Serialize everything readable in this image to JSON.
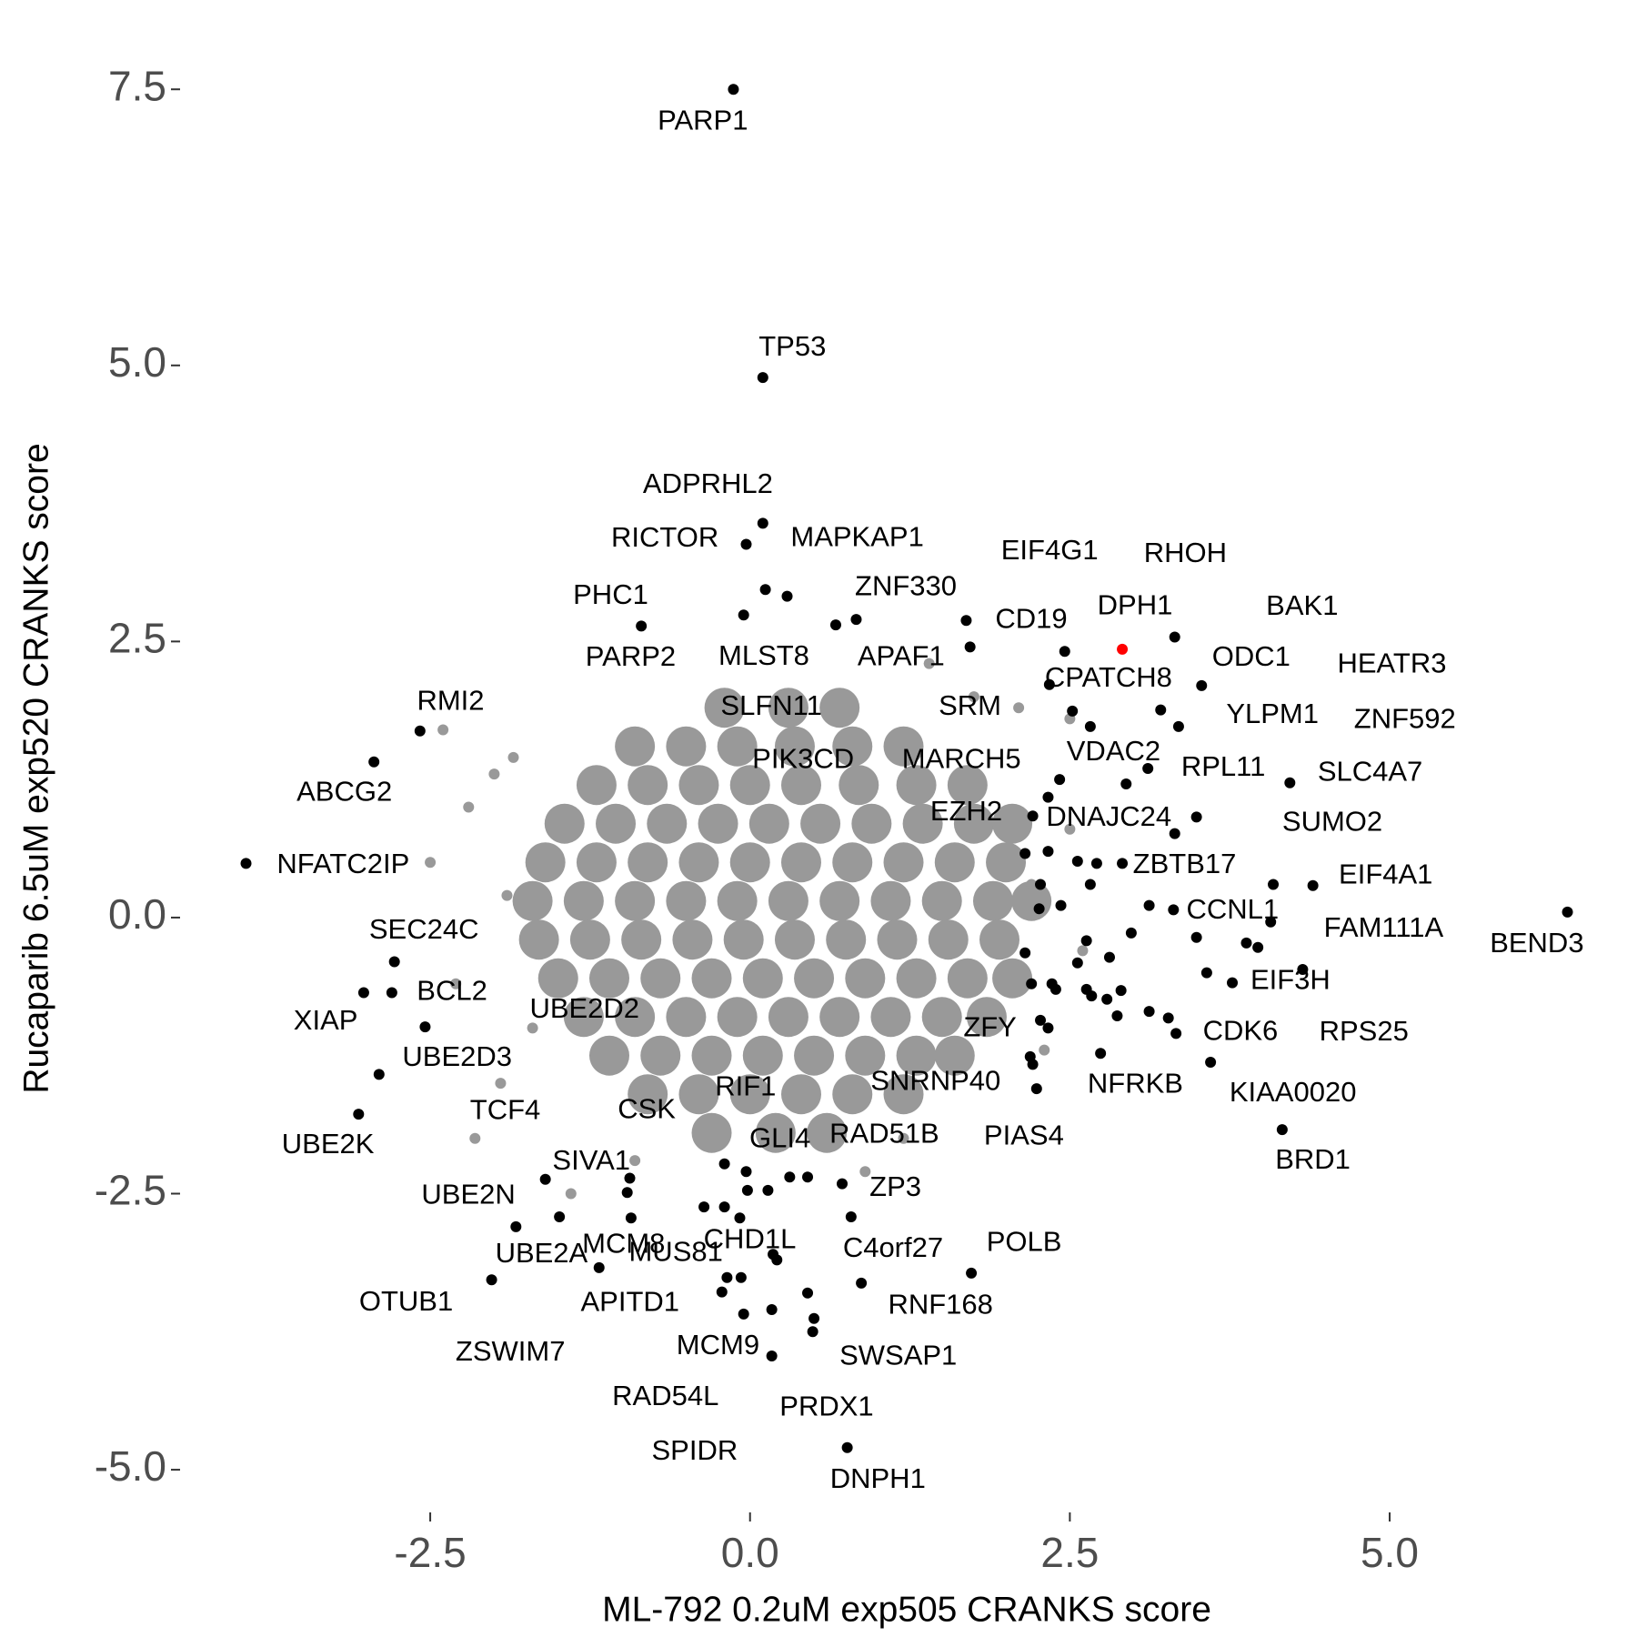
{
  "chart_data": {
    "type": "scatter",
    "xlabel": "ML-792 0.2uM exp505 CRANKS score",
    "ylabel": "Rucaparib 6.5uM exp520 CRANKS score",
    "xlim": [
      -4.42,
      6.77
    ],
    "ylim": [
      -5.37,
      7.93
    ],
    "xticks": [
      -2.5,
      {
        "value": 0,
        "label": "0.0"
      },
      2.5,
      {
        "value": 5,
        "label": "5.0"
      }
    ],
    "yticks": [
      {
        "value": -5,
        "label": "-5.0"
      },
      -2.5,
      {
        "value": 0,
        "label": "0.0"
      },
      2.5,
      {
        "value": 5,
        "label": "5.0"
      },
      7.5
    ],
    "grid": false,
    "series": [
      {
        "color": "#999999",
        "marker_size": 22,
        "x": [
          -0.2,
          0.3,
          0.7,
          -0.9,
          -0.5,
          -0.1,
          0.35,
          0.8,
          1.2,
          -1.2,
          -0.8,
          -0.4,
          0.0,
          0.4,
          0.85,
          1.3,
          1.7,
          -1.45,
          -1.05,
          -0.65,
          -0.25,
          0.15,
          0.55,
          0.95,
          1.35,
          1.75,
          2.05,
          -1.6,
          -1.2,
          -0.8,
          -0.4,
          0.0,
          0.4,
          0.8,
          1.2,
          1.6,
          2.0,
          -1.7,
          -1.3,
          -0.9,
          -0.5,
          -0.1,
          0.3,
          0.7,
          1.1,
          1.5,
          1.9,
          2.2,
          -1.65,
          -1.25,
          -0.85,
          -0.45,
          -0.05,
          0.35,
          0.75,
          1.15,
          1.55,
          1.95,
          -1.5,
          -1.1,
          -0.7,
          -0.3,
          0.1,
          0.5,
          0.9,
          1.3,
          1.7,
          2.05,
          -1.3,
          -0.9,
          -0.5,
          -0.1,
          0.3,
          0.7,
          1.1,
          1.5,
          1.85,
          -1.1,
          -0.7,
          -0.3,
          0.1,
          0.5,
          0.9,
          1.3,
          1.6,
          -0.8,
          -0.4,
          0.0,
          0.4,
          0.8,
          1.2,
          -0.3,
          0.2,
          0.6
        ],
        "y": [
          1.9,
          1.9,
          1.9,
          1.55,
          1.55,
          1.55,
          1.55,
          1.55,
          1.55,
          1.2,
          1.2,
          1.2,
          1.2,
          1.2,
          1.2,
          1.2,
          1.2,
          0.85,
          0.85,
          0.85,
          0.85,
          0.85,
          0.85,
          0.85,
          0.85,
          0.85,
          0.85,
          0.5,
          0.5,
          0.5,
          0.5,
          0.5,
          0.5,
          0.5,
          0.5,
          0.5,
          0.5,
          0.15,
          0.15,
          0.15,
          0.15,
          0.15,
          0.15,
          0.15,
          0.15,
          0.15,
          0.15,
          0.15,
          -0.2,
          -0.2,
          -0.2,
          -0.2,
          -0.2,
          -0.2,
          -0.2,
          -0.2,
          -0.2,
          -0.2,
          -0.55,
          -0.55,
          -0.55,
          -0.55,
          -0.55,
          -0.55,
          -0.55,
          -0.55,
          -0.55,
          -0.55,
          -0.9,
          -0.9,
          -0.9,
          -0.9,
          -0.9,
          -0.9,
          -0.9,
          -0.9,
          -0.9,
          -1.25,
          -1.25,
          -1.25,
          -1.25,
          -1.25,
          -1.25,
          -1.25,
          -1.25,
          -1.6,
          -1.6,
          -1.6,
          -1.6,
          -1.6,
          -1.6,
          -1.95,
          -1.95,
          -1.95
        ]
      },
      {
        "color": "#999999",
        "marker_size": 6,
        "x": [
          -2.4,
          -2.0,
          -1.85,
          -2.5,
          -2.3,
          -1.95,
          -2.15,
          -1.4,
          -0.9,
          1.4,
          1.75,
          2.1,
          2.5,
          2.3,
          2.6,
          2.2,
          2.5,
          0.9,
          1.2,
          -1.9,
          -2.2,
          -1.7
        ],
        "y": [
          1.7,
          1.3,
          1.45,
          0.5,
          -0.6,
          -1.5,
          -2.0,
          -2.5,
          -2.2,
          2.3,
          2.0,
          1.9,
          1.8,
          -1.2,
          -0.3,
          0.3,
          0.8,
          -2.3,
          -2.0,
          0.2,
          1.0,
          -1.0
        ]
      },
      {
        "color": "#000000",
        "marker_size": 6,
        "x": [
          2.15,
          2.2,
          2.36,
          2.39,
          2.63,
          2.67,
          2.79,
          2.9,
          2.87,
          2.56,
          2.81,
          2.63,
          2.98,
          3.12,
          3.49,
          3.57,
          3.88,
          3.97,
          3.12,
          3.27,
          2.27,
          2.26,
          2.43,
          2.33,
          2.56,
          2.15,
          2.71,
          2.27,
          2.66,
          2.19,
          -0.36,
          -0.08,
          -0.02,
          0.14,
          0.31,
          0.45,
          -0.18,
          -0.07,
          0.45
        ],
        "y": [
          -0.32,
          -0.6,
          -0.6,
          -0.65,
          -0.65,
          -0.71,
          -0.74,
          -0.66,
          -0.89,
          -0.41,
          -0.36,
          -0.21,
          -0.14,
          0.11,
          -0.18,
          -0.5,
          -0.23,
          -0.27,
          -0.85,
          -0.91,
          -0.93,
          0.08,
          0.11,
          0.6,
          0.51,
          0.58,
          0.49,
          0.3,
          0.3,
          -1.26,
          -2.62,
          -2.72,
          -2.47,
          -2.47,
          -2.35,
          -2.35,
          -3.26,
          -3.26,
          -3.4
        ]
      },
      {
        "color": "#000000",
        "marker_size": 6,
        "labels": [
          "PARP1",
          "TP53",
          "ADPRHL2",
          "RICTOR",
          "MAPKAP1",
          "MLST8",
          "PHC1",
          "PARP2",
          "SLFN11",
          "ZNF330",
          "EIF4G1",
          "CD19",
          "APAF1",
          "RHOH",
          "BAK1",
          "ODC1",
          "HEATR3",
          "CPATCH8",
          "PIK3CD",
          "SRM",
          "MARCH5",
          "YLPM1",
          "ZNF592",
          "VDAC2",
          "RPL11",
          "SLC4A7",
          "EZH2",
          "DNAJC24",
          "SUMO2",
          "ZBTB17",
          "EIF4A1",
          "CCNL1",
          "FAM111A",
          "BEND3",
          "EIF3H",
          "RPS25",
          "CDK6",
          "KIAA0020",
          "BRD1",
          "NFRKB",
          "ZFY",
          "SNRNP40",
          "PIAS4",
          "RAD51B",
          "ZP3",
          "POLB",
          "RNF168",
          "C4orf27",
          "SWSAP1",
          "PRDX1",
          "SPIDR",
          "DNPH1",
          "RAD54L",
          "MCM9",
          "APITD1",
          "ZSWIM7",
          "OTUB1",
          "UBE2A",
          "MCM8",
          "MUS81",
          "CHD1L",
          "UBE2N",
          "SIVA1",
          "TCF4",
          "CSK",
          "RIF1",
          "GLI4",
          "UBE2K",
          "UBE2D3",
          "XIAP",
          "BCL2",
          "UBE2D2",
          "SEC24C",
          "NFATC2IP",
          "ABCG2",
          "RMI2"
        ],
        "x": [
          -0.13,
          0.1,
          0.1,
          -0.03,
          0.12,
          0.29,
          -0.85,
          -0.05,
          0.67,
          0.83,
          1.69,
          1.72,
          2.46,
          3.32,
          3.21,
          3.53,
          3.35,
          2.34,
          2.52,
          2.66,
          2.42,
          3.11,
          2.94,
          2.33,
          3.32,
          4.22,
          2.21,
          3.49,
          4.09,
          2.91,
          4.4,
          3.31,
          4.07,
          6.39,
          3.77,
          4.32,
          3.33,
          3.6,
          4.16,
          2.74,
          2.33,
          2.21,
          2.24,
          0.72,
          0.79,
          1.73,
          0.87,
          0.21,
          0.49,
          0.5,
          0.17,
          0.76,
          -0.05,
          0.17,
          -0.22,
          -1.18,
          -2.02,
          -1.49,
          -0.93,
          -0.2,
          0.18,
          -1.83,
          -0.96,
          -1.6,
          -0.94,
          -0.2,
          -0.03,
          -3.06,
          -2.9,
          -3.02,
          -2.8,
          -2.54,
          -2.78,
          -3.94,
          -2.94,
          -2.58
        ],
        "y": [
          7.5,
          4.89,
          3.57,
          3.38,
          2.97,
          2.91,
          2.64,
          2.74,
          2.65,
          2.7,
          2.69,
          2.45,
          2.41,
          2.54,
          1.88,
          2.1,
          1.73,
          2.11,
          1.87,
          1.73,
          1.25,
          1.35,
          1.21,
          1.09,
          0.76,
          1.22,
          0.92,
          0.91,
          0.3,
          0.49,
          0.29,
          0.07,
          -0.04,
          0.05,
          -0.59,
          -0.47,
          -1.05,
          -1.31,
          -1.92,
          -1.23,
          -1.0,
          -1.33,
          -1.55,
          -2.41,
          -2.71,
          -3.22,
          -3.31,
          -3.1,
          -3.75,
          -3.63,
          -3.97,
          -4.8,
          -3.59,
          -3.55,
          -3.39,
          -3.17,
          -3.28,
          -2.71,
          -2.72,
          -2.62,
          -3.05,
          -2.8,
          -2.49,
          -2.37,
          -2.36,
          -2.23,
          -2.3,
          -1.78,
          -1.42,
          -0.68,
          -0.68,
          -0.99,
          -0.4,
          0.49,
          1.41,
          1.69
        ]
      },
      {
        "color": "#ff0000",
        "marker_size": 6,
        "labels": [
          "DPH1"
        ],
        "x": [
          2.91
        ],
        "y": [
          2.43
        ]
      }
    ]
  }
}
